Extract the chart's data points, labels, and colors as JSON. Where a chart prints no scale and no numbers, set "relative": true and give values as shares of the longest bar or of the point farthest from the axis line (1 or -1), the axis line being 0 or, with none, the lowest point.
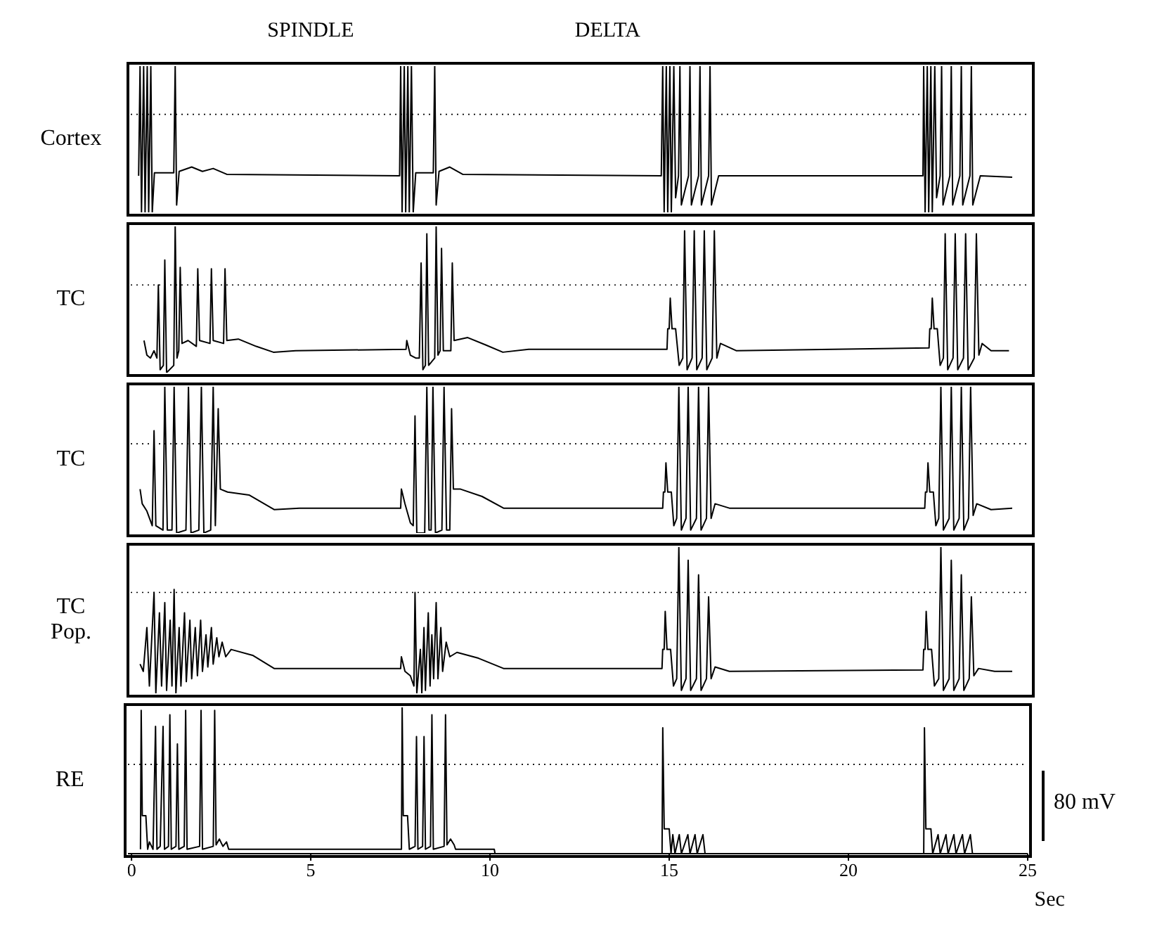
{
  "chart_data": [
    {
      "type": "line",
      "relative": true,
      "ylabel": "Cortex",
      "annotations": [
        "SPINDLE",
        "DELTA"
      ],
      "xlim": [
        -0.1,
        25
      ],
      "tick_labels": false,
      "ref_lines": [
        {
          "axis": "y",
          "value": 0.67,
          "line_style": "dotted",
          "color": "#000000"
        }
      ],
      "series": [
        {
          "color": "#000000",
          "x": [
            0.12,
            0.16,
            0.2,
            0.26,
            0.3,
            0.36,
            0.4,
            0.46,
            0.5,
            0.56,
            1.1,
            1.14,
            1.18,
            1.25,
            1.6,
            1.9,
            2.2,
            2.58,
            7.4,
            7.43,
            7.47,
            7.53,
            7.57,
            7.63,
            7.67,
            7.73,
            7.78,
            7.85,
            8.34,
            8.38,
            8.42,
            8.5,
            8.8,
            9.16,
            14.7,
            14.74,
            14.78,
            14.84,
            14.88,
            14.94,
            14.98,
            15.05,
            15.1,
            15.18,
            15.22,
            15.26,
            15.46,
            15.5,
            15.54,
            15.74,
            15.78,
            15.82,
            16.02,
            16.06,
            16.1,
            16.3,
            22.0,
            22.02,
            22.06,
            22.12,
            22.16,
            22.22,
            22.26,
            22.33,
            22.38,
            22.48,
            22.52,
            22.56,
            22.75,
            22.79,
            22.83,
            23.03,
            23.07,
            23.11,
            23.31,
            23.35,
            23.39,
            23.6,
            24.49
          ],
          "values": [
            0.25,
            1,
            0,
            1,
            0,
            1,
            0,
            1,
            0,
            0.27,
            0.27,
            1,
            0.05,
            0.28,
            0.31,
            0.28,
            0.3,
            0.26,
            0.25,
            1,
            0,
            1,
            0,
            1,
            0,
            1,
            0,
            0.27,
            0.27,
            1,
            0.05,
            0.28,
            0.31,
            0.26,
            0.25,
            1,
            0,
            1,
            0,
            1,
            0,
            1,
            0.1,
            0.25,
            1,
            0.05,
            0.25,
            1,
            0.05,
            0.25,
            1,
            0.05,
            0.25,
            1,
            0.05,
            0.25,
            0.25,
            1,
            0,
            1,
            0,
            1,
            0,
            1,
            0.1,
            0.25,
            1,
            0.05,
            0.25,
            1,
            0.05,
            0.25,
            1,
            0.05,
            0.25,
            1,
            0.05,
            0.25,
            0.24
          ]
        }
      ]
    },
    {
      "type": "line",
      "relative": true,
      "ylabel": "TC",
      "xlim": [
        -0.1,
        25
      ],
      "tick_labels": false,
      "ref_lines": [
        {
          "axis": "y",
          "value": 0.6,
          "line_style": "dotted",
          "color": "#000000"
        }
      ],
      "series": [
        {
          "color": "#000000",
          "x": [
            0.27,
            0.35,
            0.45,
            0.55,
            0.63,
            0.67,
            0.72,
            0.81,
            0.85,
            0.9,
            1.1,
            1.14,
            1.19,
            1.24,
            1.28,
            1.33,
            1.5,
            1.73,
            1.77,
            1.82,
            2.11,
            2.15,
            2.2,
            2.49,
            2.53,
            2.58,
            2.9,
            3.4,
            3.88,
            4.5,
            7.58,
            7.6,
            7.7,
            7.85,
            7.95,
            8.0,
            8.05,
            8.12,
            8.16,
            8.21,
            8.38,
            8.42,
            8.47,
            8.53,
            8.57,
            8.62,
            8.83,
            8.87,
            8.92,
            9.3,
            9.8,
            10.28,
            11,
            14.86,
            14.88,
            14.92,
            14.95,
            15.0,
            15.1,
            15.2,
            15.3,
            15.35,
            15.42,
            15.56,
            15.62,
            15.69,
            15.84,
            15.9,
            15.97,
            16.12,
            16.18,
            16.25,
            16.35,
            16.8,
            22.17,
            22.19,
            22.23,
            22.26,
            22.31,
            22.4,
            22.48,
            22.57,
            22.62,
            22.69,
            22.84,
            22.9,
            22.97,
            23.13,
            23.19,
            23.26,
            23.43,
            23.49,
            23.56,
            23.65,
            23.9,
            24.4
          ],
          "values": [
            0.22,
            0.12,
            0.1,
            0.15,
            0.1,
            0.6,
            0.02,
            0.05,
            0.77,
            0.0,
            0.05,
            1,
            0.1,
            0.15,
            0.72,
            0.2,
            0.22,
            0.18,
            0.71,
            0.22,
            0.2,
            0.71,
            0.22,
            0.2,
            0.71,
            0.22,
            0.23,
            0.18,
            0.14,
            0.15,
            0.16,
            0.22,
            0.12,
            0.1,
            0.1,
            0.75,
            0.02,
            0.05,
            0.95,
            0.05,
            0.1,
            1,
            0.12,
            0.15,
            0.85,
            0.15,
            0.15,
            0.75,
            0.22,
            0.24,
            0.19,
            0.14,
            0.16,
            0.16,
            0.3,
            0.3,
            0.51,
            0.3,
            0.3,
            0.05,
            0.1,
            0.97,
            0.02,
            0.1,
            0.97,
            0.02,
            0.1,
            0.97,
            0.02,
            0.1,
            0.97,
            0.1,
            0.2,
            0.15,
            0.17,
            0.3,
            0.3,
            0.51,
            0.3,
            0.3,
            0.05,
            0.1,
            0.95,
            0.02,
            0.1,
            0.95,
            0.02,
            0.1,
            0.95,
            0.02,
            0.1,
            0.95,
            0.12,
            0.2,
            0.15,
            0.15
          ]
        }
      ]
    },
    {
      "type": "line",
      "relative": true,
      "ylabel": "TC",
      "xlim": [
        -0.1,
        25
      ],
      "tick_labels": false,
      "ref_lines": [
        {
          "axis": "y",
          "value": 0.61,
          "line_style": "dotted",
          "color": "#000000"
        }
      ],
      "series": [
        {
          "color": "#000000",
          "x": [
            0.16,
            0.22,
            0.35,
            0.5,
            0.55,
            0.6,
            0.8,
            0.85,
            0.92,
            1.05,
            1.11,
            1.18,
            1.44,
            1.51,
            1.58,
            1.8,
            1.87,
            1.94,
            2.13,
            2.2,
            2.26,
            2.34,
            2.4,
            2.6,
            3.2,
            3.9,
            4.6,
            7.43,
            7.45,
            7.55,
            7.7,
            7.78,
            7.83,
            7.88,
            8.1,
            8.16,
            8.22,
            8.28,
            8.33,
            8.4,
            8.58,
            8.64,
            8.71,
            8.8,
            8.85,
            8.9,
            9.1,
            9.7,
            10.3,
            14.74,
            14.76,
            14.8,
            14.83,
            14.88,
            14.98,
            15.05,
            15.13,
            15.19,
            15.26,
            15.39,
            15.45,
            15.52,
            15.68,
            15.74,
            15.81,
            15.96,
            16.02,
            16.09,
            16.2,
            16.6,
            22.05,
            22.07,
            22.11,
            22.14,
            22.19,
            22.29,
            22.36,
            22.44,
            22.5,
            22.57,
            22.73,
            22.79,
            22.86,
            23.01,
            23.07,
            23.14,
            23.27,
            23.33,
            23.4,
            23.5,
            23.9,
            24.49
          ],
          "values": [
            0.3,
            0.2,
            0.15,
            0.05,
            0.7,
            0.05,
            0.02,
            1,
            0.02,
            0.02,
            1,
            0.0,
            0.02,
            1,
            0.0,
            0.02,
            1,
            0.0,
            0.02,
            1,
            0.05,
            0.85,
            0.3,
            0.28,
            0.26,
            0.16,
            0.17,
            0.17,
            0.3,
            0.2,
            0.07,
            0.05,
            0.8,
            0.0,
            0.0,
            1,
            0.02,
            0.02,
            1,
            0.0,
            0.02,
            1,
            0.02,
            0.02,
            0.85,
            0.3,
            0.3,
            0.25,
            0.17,
            0.17,
            0.28,
            0.28,
            0.48,
            0.28,
            0.28,
            0.05,
            0.1,
            1,
            0.02,
            0.1,
            1,
            0.02,
            0.1,
            1,
            0.02,
            0.1,
            1,
            0.1,
            0.2,
            0.17,
            0.17,
            0.28,
            0.28,
            0.48,
            0.28,
            0.28,
            0.05,
            0.1,
            1,
            0.02,
            0.1,
            1,
            0.02,
            0.1,
            1,
            0.02,
            0.1,
            1,
            0.12,
            0.2,
            0.16,
            0.17
          ]
        }
      ]
    },
    {
      "type": "line",
      "relative": true,
      "ylabel": "TC Pop.",
      "xlim": [
        -0.1,
        25
      ],
      "tick_labels": false,
      "ref_lines": [
        {
          "axis": "y",
          "value": 0.69,
          "line_style": "dotted",
          "color": "#000000"
        }
      ],
      "series": [
        {
          "color": "#000000",
          "x": [
            0.16,
            0.25,
            0.35,
            0.42,
            0.55,
            0.6,
            0.7,
            0.76,
            0.85,
            0.9,
            1.0,
            1.05,
            1.11,
            1.16,
            1.25,
            1.3,
            1.4,
            1.45,
            1.55,
            1.6,
            1.7,
            1.76,
            1.85,
            1.9,
            2.0,
            2.05,
            2.15,
            2.2,
            2.3,
            2.36,
            2.45,
            2.55,
            2.7,
            3.3,
            3.9,
            4.6,
            7.43,
            7.45,
            7.55,
            7.7,
            7.8,
            7.83,
            7.88,
            7.98,
            8.02,
            8.08,
            8.12,
            8.2,
            8.25,
            8.3,
            8.35,
            8.42,
            8.47,
            8.55,
            8.6,
            8.7,
            8.8,
            9.0,
            9.6,
            10.3,
            14.72,
            14.74,
            14.78,
            14.81,
            14.86,
            14.96,
            15.04,
            15.13,
            15.19,
            15.26,
            15.39,
            15.45,
            15.52,
            15.68,
            15.74,
            15.81,
            15.96,
            16.02,
            16.09,
            16.2,
            16.6,
            22.0,
            22.02,
            22.06,
            22.09,
            22.14,
            22.24,
            22.32,
            22.44,
            22.5,
            22.57,
            22.73,
            22.79,
            22.86,
            23.01,
            23.07,
            23.14,
            23.29,
            23.35,
            23.42,
            23.55,
            24.0,
            24.49
          ],
          "values": [
            0.2,
            0.15,
            0.45,
            0.05,
            0.69,
            0.0,
            0.55,
            0.05,
            0.62,
            0.02,
            0.5,
            0.05,
            0.71,
            0.0,
            0.45,
            0.05,
            0.55,
            0.08,
            0.5,
            0.1,
            0.45,
            0.12,
            0.5,
            0.15,
            0.4,
            0.18,
            0.45,
            0.2,
            0.38,
            0.25,
            0.35,
            0.25,
            0.3,
            0.26,
            0.17,
            0.17,
            0.17,
            0.25,
            0.15,
            0.12,
            0.05,
            0.69,
            0.0,
            0.3,
            0.0,
            0.45,
            0.02,
            0.55,
            0.05,
            0.4,
            0.1,
            0.62,
            0.1,
            0.45,
            0.15,
            0.35,
            0.25,
            0.28,
            0.24,
            0.17,
            0.17,
            0.3,
            0.3,
            0.56,
            0.3,
            0.3,
            0.05,
            0.1,
            1,
            0.02,
            0.1,
            0.91,
            0.02,
            0.1,
            0.81,
            0.02,
            0.1,
            0.66,
            0.1,
            0.18,
            0.15,
            0.16,
            0.3,
            0.3,
            0.56,
            0.3,
            0.3,
            0.05,
            0.1,
            1,
            0.02,
            0.1,
            0.91,
            0.02,
            0.1,
            0.81,
            0.02,
            0.1,
            0.66,
            0.12,
            0.17,
            0.15,
            0.15
          ]
        }
      ]
    },
    {
      "type": "line",
      "relative": true,
      "ylabel": "RE",
      "xlabel": "Sec",
      "annotations": [
        "80 mV"
      ],
      "xlim": [
        -0.1,
        25
      ],
      "xticks": [
        0,
        5,
        10,
        15,
        20,
        25
      ],
      "tick_labels": "x",
      "ref_lines": [
        {
          "axis": "y",
          "value": 0.61,
          "line_style": "dotted",
          "color": "#000000"
        }
      ],
      "series": [
        {
          "color": "#000000",
          "x": [
            0.25,
            0.27,
            0.3,
            0.4,
            0.45,
            0.5,
            0.6,
            0.67,
            0.71,
            0.8,
            0.88,
            0.92,
            1.03,
            1.07,
            1.11,
            1.24,
            1.28,
            1.32,
            1.47,
            1.51,
            1.55,
            1.9,
            1.94,
            1.98,
            2.28,
            2.32,
            2.36,
            2.45,
            2.55,
            2.65,
            2.71,
            7.53,
            7.55,
            7.58,
            7.7,
            7.75,
            7.91,
            7.95,
            7.99,
            8.12,
            8.16,
            8.2,
            8.34,
            8.38,
            8.42,
            8.72,
            8.76,
            8.8,
            8.9,
            9.0,
            9.04,
            10.12,
            10.14,
            14.8,
            14.82,
            14.86,
            15.0,
            15.05,
            15.1,
            15.16,
            15.28,
            15.34,
            15.52,
            15.58,
            15.72,
            15.78,
            15.94,
            16.0,
            22.1,
            22.12,
            22.16,
            22.3,
            22.35,
            22.5,
            22.56,
            22.72,
            22.78,
            22.94,
            23.0,
            23.18,
            23.24,
            23.4,
            23.46,
            24.3
          ],
          "values": [
            0.03,
            0.98,
            0.26,
            0.26,
            0.03,
            0.08,
            0.03,
            0.87,
            0.03,
            0.05,
            0.87,
            0.03,
            0.05,
            0.95,
            0.03,
            0.05,
            0.75,
            0.03,
            0.05,
            0.98,
            0.03,
            0.05,
            0.98,
            0.03,
            0.05,
            0.98,
            0.06,
            0.1,
            0.05,
            0.08,
            0.03,
            0.03,
            1,
            0.26,
            0.26,
            0.03,
            0.05,
            0.8,
            0.03,
            0.05,
            0.8,
            0.03,
            0.05,
            0.95,
            0.03,
            0.05,
            0.95,
            0.06,
            0.1,
            0.06,
            0.03,
            0.03,
            0,
            0,
            0.86,
            0.17,
            0.17,
            0.0,
            0.13,
            0,
            0.13,
            0,
            0.13,
            0,
            0.13,
            0,
            0.13,
            0,
            0,
            0.86,
            0.17,
            0.17,
            0,
            0.13,
            0,
            0.13,
            0,
            0.13,
            0,
            0.13,
            0,
            0.13,
            0,
            0
          ]
        }
      ]
    }
  ]
}
